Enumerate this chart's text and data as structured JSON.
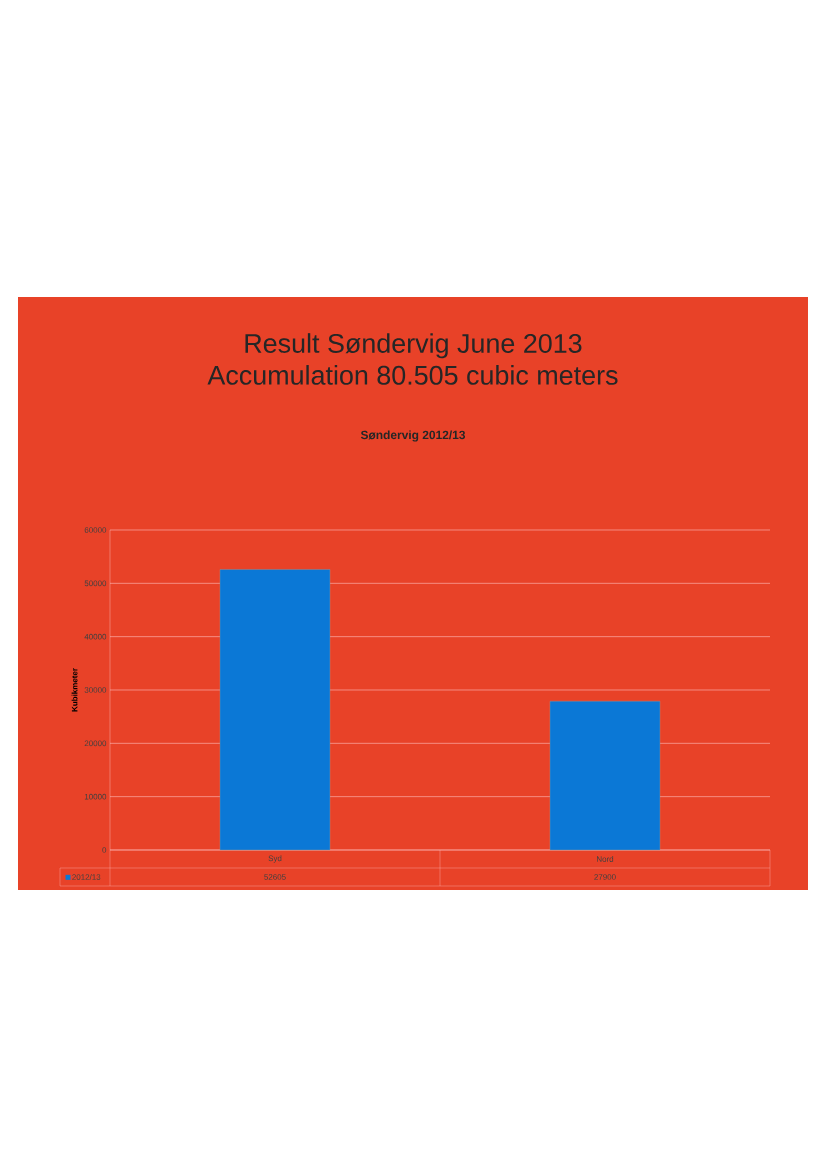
{
  "chart_data": {
    "type": "bar",
    "title": "Result Søndervig June 2013\nAccumulation 80.505 cubic meters",
    "subtitle": "Søndervig 2012/13",
    "ylabel": "Kubikmeter",
    "categories": [
      "Syd",
      "Nord"
    ],
    "series": [
      {
        "name": "2012/13",
        "color": "#0b78d6",
        "values": [
          52605,
          27900
        ]
      }
    ],
    "ylim": [
      0,
      60000
    ],
    "yticks": [
      0,
      10000,
      20000,
      30000,
      40000,
      50000,
      60000
    ],
    "grid": "y",
    "legend": "bottom",
    "data_labels": true
  }
}
